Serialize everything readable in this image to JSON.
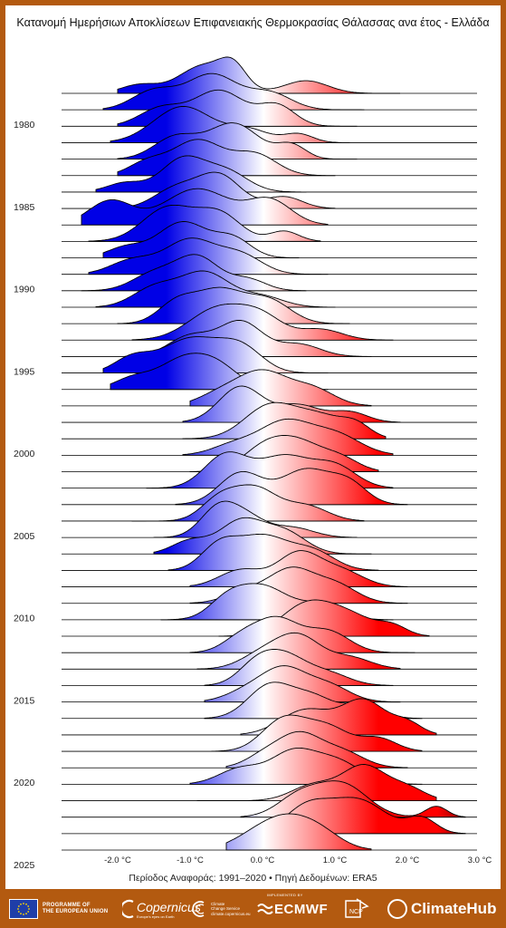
{
  "title": "Κατανομή Ημερήσιων Αποκλίσεων Επιφανειακής Θερμοκρασίας Θάλασσας ανα έτος - Ελλάδα",
  "caption": "Περίοδος Αναφοράς: 1991–2020 • Πηγή Δεδομένων: ERA5",
  "footer": {
    "eu_label_1": "PROGRAMME OF",
    "eu_label_2": "THE EUROPEAN UNION",
    "copernicus_label": "Copernicus",
    "copernicus_sub": "Europe's eyes on Earth",
    "c3s_label_1": "Climate",
    "c3s_label_2": "Change Service",
    "c3s_label_3": "climate.copernicus.eu",
    "ecmwf_pre": "IMPLEMENTED BY",
    "ecmwf_label": "ECMWF",
    "ncp_label": "NCP",
    "climatehub_label": "ClimateHub"
  },
  "colors": {
    "frame": "#b35a10",
    "cold": "#0000e6",
    "neutral": "#ffffff",
    "warm": "#ff0000",
    "warm_dark": "#8b0000"
  },
  "chart_data": {
    "type": "ridgeline",
    "title": "Κατανομή Ημερήσιων Αποκλίσεων Επιφανειακής Θερμοκρασίας Θάλασσας ανα έτος - Ελλάδα",
    "xlabel": "",
    "ylabel": "",
    "x_unit": "°C",
    "xlim": [
      -2.9,
      3.0
    ],
    "x_ticks": [
      -2.0,
      -1.0,
      0.0,
      1.0,
      2.0,
      3.0
    ],
    "x_tick_labels": [
      "-2.0 °C",
      "-1.0 °C",
      "0.0 °C",
      "1.0 °C",
      "2.0 °C",
      "3.0 °C"
    ],
    "y_tick_labels": [
      "1980",
      "1985",
      "1990",
      "1995",
      "2000",
      "2005",
      "2010",
      "2015",
      "2020",
      "2025"
    ],
    "color_scale": {
      "min": -2.0,
      "mid": 0.0,
      "max": 2.5
    },
    "grid": false,
    "legend": "none",
    "years": [
      1979,
      1980,
      1981,
      1982,
      1983,
      1984,
      1985,
      1986,
      1987,
      1988,
      1989,
      1990,
      1991,
      1992,
      1993,
      1994,
      1995,
      1996,
      1997,
      1998,
      1999,
      2000,
      2001,
      2002,
      2003,
      2004,
      2005,
      2006,
      2007,
      2008,
      2009,
      2010,
      2011,
      2012,
      2013,
      2014,
      2015,
      2016,
      2017,
      2018,
      2019,
      2020,
      2021,
      2022,
      2023,
      2024,
      2025
    ],
    "distributions": [
      {
        "year": 1979,
        "peaks": [
          [
            -0.8,
            0.35,
            1.0
          ],
          [
            -0.4,
            0.18,
            0.7
          ],
          [
            0.6,
            0.3,
            0.45
          ],
          [
            -1.7,
            0.25,
            0.3
          ]
        ],
        "range": [
          -2.0,
          1.9
        ]
      },
      {
        "year": 1980,
        "peaks": [
          [
            -0.7,
            0.35,
            0.75
          ],
          [
            0.1,
            0.3,
            0.35
          ],
          [
            -1.5,
            0.3,
            0.4
          ]
        ],
        "range": [
          -2.2,
          1.4
        ]
      },
      {
        "year": 1981,
        "peaks": [
          [
            -0.6,
            0.35,
            0.7
          ],
          [
            0.2,
            0.25,
            0.4
          ],
          [
            -1.4,
            0.3,
            0.35
          ]
        ],
        "range": [
          -2.0,
          1.3
        ]
      },
      {
        "year": 1982,
        "peaks": [
          [
            -1.1,
            0.4,
            0.85
          ],
          [
            -0.2,
            0.3,
            0.3
          ],
          [
            0.5,
            0.2,
            0.2
          ]
        ],
        "range": [
          -2.1,
          1.2
        ]
      },
      {
        "year": 1983,
        "peaks": [
          [
            -0.4,
            0.35,
            0.65
          ],
          [
            -1.2,
            0.3,
            0.4
          ],
          [
            0.4,
            0.2,
            0.25
          ]
        ],
        "range": [
          -2.0,
          1.3
        ]
      },
      {
        "year": 1984,
        "peaks": [
          [
            -0.9,
            0.35,
            0.85
          ],
          [
            -0.1,
            0.3,
            0.5
          ],
          [
            -1.6,
            0.25,
            0.3
          ]
        ],
        "range": [
          -2.0,
          1.0
        ]
      },
      {
        "year": 1985,
        "peaks": [
          [
            -1.1,
            0.3,
            0.9
          ],
          [
            -0.5,
            0.3,
            0.55
          ],
          [
            -1.9,
            0.25,
            0.25
          ]
        ],
        "range": [
          -2.3,
          0.6
        ]
      },
      {
        "year": 1986,
        "peaks": [
          [
            -0.6,
            0.3,
            0.85
          ],
          [
            -1.2,
            0.3,
            0.5
          ],
          [
            0.3,
            0.25,
            0.3
          ]
        ],
        "range": [
          -2.1,
          1.0
        ]
      },
      {
        "year": 1987,
        "peaks": [
          [
            -0.9,
            0.45,
            0.45
          ],
          [
            -2.1,
            0.3,
            0.3
          ],
          [
            0.1,
            0.3,
            0.3
          ]
        ],
        "range": [
          -2.5,
          0.9
        ]
      },
      {
        "year": 1988,
        "peaks": [
          [
            -1.3,
            0.35,
            0.5
          ],
          [
            -0.6,
            0.3,
            0.4
          ],
          [
            0.3,
            0.2,
            0.15
          ]
        ],
        "range": [
          -2.4,
          0.8
        ]
      },
      {
        "year": 1989,
        "peaks": [
          [
            -1.1,
            0.35,
            0.9
          ],
          [
            -0.4,
            0.25,
            0.45
          ],
          [
            -1.9,
            0.25,
            0.25
          ]
        ],
        "range": [
          -2.2,
          0.5
        ]
      },
      {
        "year": 1990,
        "peaks": [
          [
            -1.0,
            0.35,
            0.75
          ],
          [
            -0.3,
            0.3,
            0.4
          ],
          [
            -1.8,
            0.3,
            0.3
          ]
        ],
        "range": [
          -2.4,
          0.9
        ]
      },
      {
        "year": 1991,
        "peaks": [
          [
            -0.9,
            0.3,
            0.9
          ],
          [
            -1.5,
            0.3,
            0.45
          ],
          [
            -0.2,
            0.25,
            0.3
          ]
        ],
        "range": [
          -2.5,
          0.6
        ]
      },
      {
        "year": 1992,
        "peaks": [
          [
            -0.8,
            0.35,
            0.85
          ],
          [
            -1.5,
            0.3,
            0.45
          ],
          [
            0.0,
            0.3,
            0.25
          ]
        ],
        "range": [
          -2.3,
          1.0
        ]
      },
      {
        "year": 1993,
        "peaks": [
          [
            -0.6,
            0.35,
            0.55
          ],
          [
            0.1,
            0.3,
            0.35
          ],
          [
            -1.2,
            0.25,
            0.3
          ]
        ],
        "range": [
          -2.0,
          1.2
        ]
      },
      {
        "year": 1994,
        "peaks": [
          [
            -0.6,
            0.4,
            0.75
          ],
          [
            0.0,
            0.3,
            0.45
          ],
          [
            0.8,
            0.3,
            0.25
          ]
        ],
        "range": [
          -1.8,
          1.8
        ]
      },
      {
        "year": 1995,
        "peaks": [
          [
            -0.3,
            0.3,
            0.85
          ],
          [
            -1.0,
            0.3,
            0.5
          ],
          [
            0.5,
            0.3,
            0.3
          ]
        ],
        "range": [
          -1.9,
          1.5
        ]
      },
      {
        "year": 1996,
        "peaks": [
          [
            -1.0,
            0.4,
            0.7
          ],
          [
            -0.3,
            0.3,
            0.5
          ],
          [
            -1.8,
            0.25,
            0.3
          ]
        ],
        "range": [
          -2.2,
          0.9
        ]
      },
      {
        "year": 1997,
        "peaks": [
          [
            -1.1,
            0.35,
            0.85
          ],
          [
            -0.6,
            0.3,
            0.55
          ],
          [
            -1.8,
            0.25,
            0.3
          ]
        ],
        "range": [
          -2.1,
          0.9
        ]
      },
      {
        "year": 1998,
        "peaks": [
          [
            0.0,
            0.35,
            0.95
          ],
          [
            0.7,
            0.3,
            0.45
          ],
          [
            -0.6,
            0.3,
            0.3
          ]
        ],
        "range": [
          -1.0,
          1.5
        ]
      },
      {
        "year": 1999,
        "peaks": [
          [
            -0.3,
            0.3,
            1.05
          ],
          [
            0.5,
            0.3,
            0.5
          ],
          [
            1.2,
            0.25,
            0.3
          ]
        ],
        "range": [
          -1.1,
          1.9
        ]
      },
      {
        "year": 2000,
        "peaks": [
          [
            0.1,
            0.35,
            0.9
          ],
          [
            0.8,
            0.35,
            0.6
          ],
          [
            1.3,
            0.2,
            0.3
          ]
        ],
        "range": [
          -1.1,
          1.7
        ]
      },
      {
        "year": 2001,
        "peaks": [
          [
            0.3,
            0.35,
            0.95
          ],
          [
            1.0,
            0.35,
            0.6
          ],
          [
            -0.4,
            0.3,
            0.3
          ]
        ],
        "range": [
          -1.1,
          1.8
        ]
      },
      {
        "year": 2002,
        "peaks": [
          [
            0.5,
            0.35,
            0.8
          ],
          [
            0.0,
            0.3,
            0.55
          ],
          [
            1.1,
            0.25,
            0.3
          ]
        ],
        "range": [
          -1.0,
          1.6
        ]
      },
      {
        "year": 2003,
        "peaks": [
          [
            -0.5,
            0.3,
            0.7
          ],
          [
            0.3,
            0.35,
            0.65
          ],
          [
            1.0,
            0.3,
            0.45
          ]
        ],
        "range": [
          -1.6,
          1.8
        ]
      },
      {
        "year": 2004,
        "peaks": [
          [
            -0.3,
            0.3,
            0.5
          ],
          [
            0.6,
            0.35,
            0.55
          ],
          [
            1.2,
            0.25,
            0.3
          ]
        ],
        "range": [
          -1.2,
          2.0
        ]
      },
      {
        "year": 2005,
        "peaks": [
          [
            -0.1,
            0.3,
            0.85
          ],
          [
            -0.6,
            0.25,
            0.55
          ],
          [
            0.6,
            0.3,
            0.4
          ]
        ],
        "range": [
          -1.8,
          1.4
        ]
      },
      {
        "year": 2006,
        "peaks": [
          [
            -0.6,
            0.25,
            1.05
          ],
          [
            -0.2,
            0.25,
            0.6
          ],
          [
            0.4,
            0.3,
            0.35
          ]
        ],
        "range": [
          -1.5,
          1.3
        ]
      },
      {
        "year": 2007,
        "peaks": [
          [
            -0.3,
            0.3,
            0.75
          ],
          [
            0.3,
            0.3,
            0.5
          ],
          [
            -1.0,
            0.25,
            0.3
          ]
        ],
        "range": [
          -1.5,
          1.5
        ]
      },
      {
        "year": 2008,
        "peaks": [
          [
            0.0,
            0.35,
            0.65
          ],
          [
            -0.6,
            0.25,
            0.45
          ],
          [
            0.7,
            0.3,
            0.35
          ]
        ],
        "range": [
          -1.3,
          1.6
        ]
      },
      {
        "year": 2009,
        "peaks": [
          [
            0.5,
            0.3,
            1.0
          ],
          [
            -0.3,
            0.3,
            0.5
          ],
          [
            1.1,
            0.3,
            0.45
          ]
        ],
        "range": [
          -1.0,
          2.0
        ]
      },
      {
        "year": 2010,
        "peaks": [
          [
            0.4,
            0.3,
            0.95
          ],
          [
            1.0,
            0.3,
            0.55
          ],
          [
            -0.2,
            0.3,
            0.35
          ]
        ],
        "range": [
          -1.0,
          2.0
        ]
      },
      {
        "year": 2011,
        "peaks": [
          [
            0.0,
            0.35,
            0.8
          ],
          [
            -0.5,
            0.25,
            0.4
          ],
          [
            0.8,
            0.3,
            0.35
          ]
        ],
        "range": [
          -1.4,
          1.8
        ]
      },
      {
        "year": 2012,
        "peaks": [
          [
            0.6,
            0.35,
            0.7
          ],
          [
            1.2,
            0.35,
            0.45
          ],
          [
            1.8,
            0.2,
            0.2
          ]
        ],
        "range": [
          -0.6,
          2.3
        ]
      },
      {
        "year": 2013,
        "peaks": [
          [
            0.2,
            0.3,
            0.7
          ],
          [
            0.9,
            0.3,
            0.45
          ],
          [
            -0.3,
            0.25,
            0.3
          ]
        ],
        "range": [
          -1.0,
          2.1
        ]
      },
      {
        "year": 2014,
        "peaks": [
          [
            0.5,
            0.3,
            0.95
          ],
          [
            0.0,
            0.3,
            0.45
          ],
          [
            1.2,
            0.3,
            0.35
          ]
        ],
        "range": [
          -0.9,
          1.9
        ]
      },
      {
        "year": 2015,
        "peaks": [
          [
            0.3,
            0.3,
            0.95
          ],
          [
            -0.1,
            0.25,
            0.6
          ],
          [
            0.9,
            0.3,
            0.4
          ]
        ],
        "range": [
          -0.8,
          1.8
        ]
      },
      {
        "year": 2016,
        "peaks": [
          [
            0.3,
            0.3,
            0.85
          ],
          [
            0.9,
            0.3,
            0.45
          ],
          [
            -0.2,
            0.3,
            0.3
          ]
        ],
        "range": [
          -0.8,
          1.9
        ]
      },
      {
        "year": 2017,
        "peaks": [
          [
            0.1,
            0.3,
            0.7
          ],
          [
            0.7,
            0.3,
            0.45
          ],
          [
            1.4,
            0.25,
            0.3
          ]
        ],
        "range": [
          -0.8,
          2.2
        ]
      },
      {
        "year": 2018,
        "peaks": [
          [
            1.4,
            0.3,
            0.75
          ],
          [
            0.6,
            0.35,
            0.55
          ],
          [
            2.0,
            0.2,
            0.25
          ]
        ],
        "range": [
          -0.3,
          2.4
        ]
      },
      {
        "year": 2019,
        "peaks": [
          [
            0.3,
            0.3,
            0.75
          ],
          [
            0.9,
            0.3,
            0.55
          ],
          [
            1.6,
            0.25,
            0.3
          ]
        ],
        "range": [
          -0.7,
          2.2
        ]
      },
      {
        "year": 2020,
        "peaks": [
          [
            0.5,
            0.3,
            0.95
          ],
          [
            1.1,
            0.3,
            0.45
          ],
          [
            0.0,
            0.25,
            0.3
          ]
        ],
        "range": [
          -0.5,
          2.0
        ]
      },
      {
        "year": 2021,
        "peaks": [
          [
            0.4,
            0.3,
            0.55
          ],
          [
            1.0,
            0.35,
            0.45
          ],
          [
            -0.3,
            0.3,
            0.3
          ]
        ],
        "range": [
          -1.0,
          2.2
        ]
      },
      {
        "year": 2022,
        "peaks": [
          [
            1.4,
            0.3,
            1.0
          ],
          [
            0.7,
            0.3,
            0.45
          ],
          [
            2.0,
            0.25,
            0.35
          ]
        ],
        "range": [
          -0.9,
          2.4
        ]
      },
      {
        "year": 2023,
        "peaks": [
          [
            1.1,
            0.35,
            0.9
          ],
          [
            0.5,
            0.3,
            0.55
          ],
          [
            2.4,
            0.15,
            0.3
          ]
        ],
        "range": [
          -0.3,
          2.8
        ]
      },
      {
        "year": 2024,
        "peaks": [
          [
            1.3,
            0.4,
            0.7
          ],
          [
            0.6,
            0.3,
            0.5
          ],
          [
            2.2,
            0.2,
            0.3
          ]
        ],
        "range": [
          -0.1,
          2.8
        ]
      },
      {
        "year": 2025,
        "peaks": [
          [
            0.3,
            0.35,
            0.9
          ],
          [
            0.8,
            0.3,
            0.45
          ],
          [
            -0.2,
            0.3,
            0.25
          ]
        ],
        "range": [
          -0.5,
          1.5
        ]
      }
    ]
  }
}
